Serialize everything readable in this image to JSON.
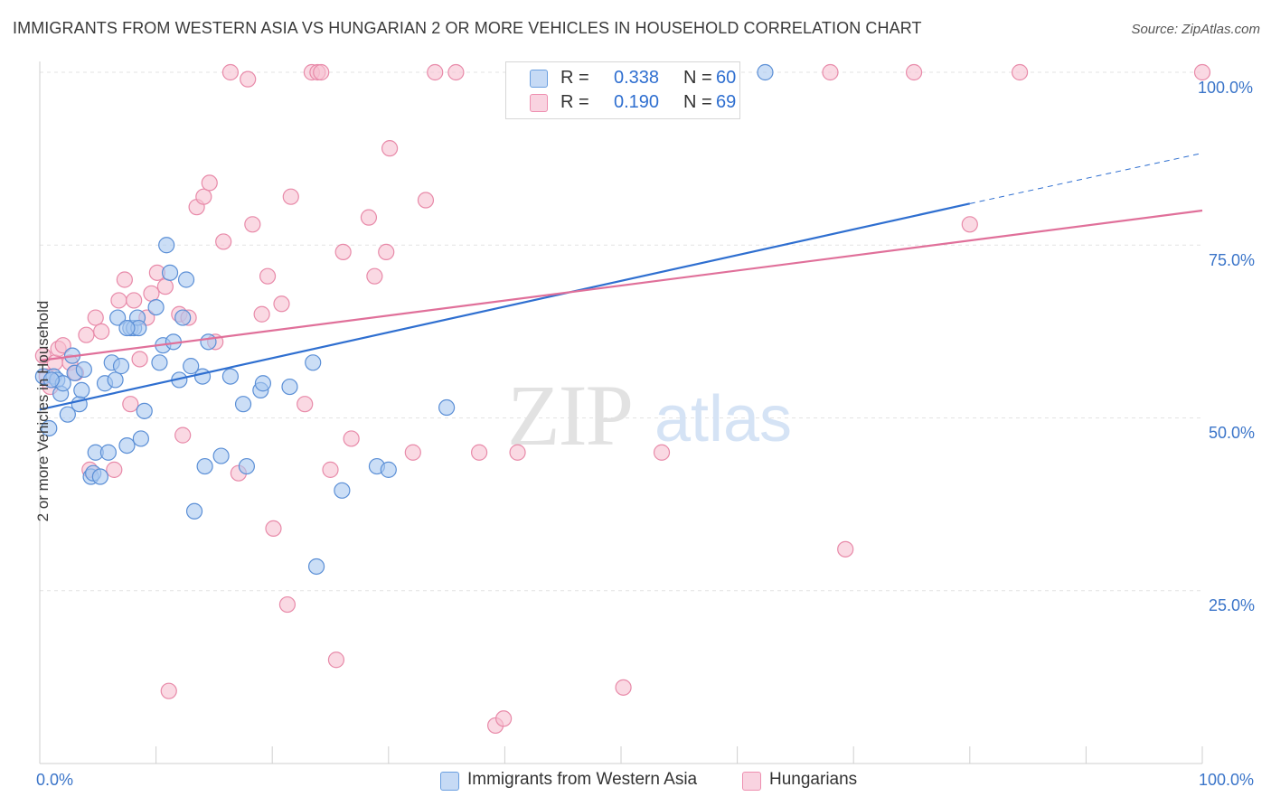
{
  "header": {
    "title": "IMMIGRANTS FROM WESTERN ASIA VS HUNGARIAN 2 OR MORE VEHICLES IN HOUSEHOLD CORRELATION CHART",
    "source": "Source: ZipAtlas.com"
  },
  "watermark": {
    "zip": "ZIP",
    "atlas": "atlas"
  },
  "legend_box": {
    "rows": [
      {
        "r_label": "R =",
        "r_value": "0.338",
        "n_label": "N =",
        "n_value": "60",
        "color": "#6a9fe0"
      },
      {
        "r_label": "R =",
        "r_value": "0.190",
        "n_label": "N =",
        "n_value": "69",
        "color": "#ee8fb0"
      }
    ]
  },
  "bottom_legend": [
    {
      "label": "Immigrants from Western Asia",
      "color": "#6a9fe0"
    },
    {
      "label": "Hungarians",
      "color": "#ee8fb0"
    }
  ],
  "colors": {
    "blue_fill": "#a9c8f0",
    "blue_stroke": "#5b8fd6",
    "blue_line": "#2f6fd0",
    "pink_fill": "#f6bfd0",
    "pink_stroke": "#e88aa9",
    "pink_line": "#e0709a",
    "grid": "#e3e3e3",
    "tick_text": "#3b75c9"
  },
  "chart_data": {
    "type": "scatter",
    "title": "IMMIGRANTS FROM WESTERN ASIA VS HUNGARIAN 2 OR MORE VEHICLES IN HOUSEHOLD CORRELATION CHART",
    "xlabel": "",
    "ylabel": "2 or more Vehicles in Household",
    "x_tick_labels": [
      "0.0%",
      "100.0%"
    ],
    "y_tick_labels": [
      "100.0%",
      "75.0%",
      "50.0%",
      "25.0%"
    ],
    "xlim": [
      0,
      100
    ],
    "ylim": [
      0,
      100
    ],
    "grid": true,
    "legend_position": "top-center",
    "series": [
      {
        "name": "Immigrants from Western Asia",
        "points": [
          [
            0.3,
            56
          ],
          [
            0.8,
            48.5
          ],
          [
            1.2,
            56
          ],
          [
            1.5,
            55.5
          ],
          [
            1.8,
            53.5
          ],
          [
            2.0,
            55
          ],
          [
            2.4,
            50.5
          ],
          [
            2.8,
            59
          ],
          [
            3.0,
            56.5
          ],
          [
            3.4,
            52
          ],
          [
            3.6,
            54
          ],
          [
            3.8,
            57
          ],
          [
            4.4,
            41.5
          ],
          [
            4.6,
            42
          ],
          [
            4.8,
            45
          ],
          [
            5.2,
            41.5
          ],
          [
            5.6,
            55
          ],
          [
            5.9,
            45
          ],
          [
            6.2,
            58
          ],
          [
            6.5,
            55.5
          ],
          [
            6.7,
            64.5
          ],
          [
            7.0,
            57.5
          ],
          [
            7.5,
            46
          ],
          [
            7.8,
            63
          ],
          [
            8.1,
            63
          ],
          [
            8.4,
            64.5
          ],
          [
            8.7,
            47
          ],
          [
            9.0,
            51
          ],
          [
            10.0,
            66
          ],
          [
            10.3,
            58
          ],
          [
            10.6,
            60.5
          ],
          [
            10.9,
            75
          ],
          [
            11.2,
            71
          ],
          [
            11.5,
            61
          ],
          [
            12.0,
            55.5
          ],
          [
            12.3,
            64.5
          ],
          [
            12.6,
            70
          ],
          [
            13.0,
            57.5
          ],
          [
            13.3,
            36.5
          ],
          [
            14.0,
            56
          ],
          [
            14.2,
            43
          ],
          [
            14.5,
            61
          ],
          [
            15.6,
            44.5
          ],
          [
            16.4,
            56
          ],
          [
            17.5,
            52
          ],
          [
            17.8,
            43
          ],
          [
            19.0,
            54
          ],
          [
            19.2,
            55
          ],
          [
            21.5,
            54.5
          ],
          [
            23.5,
            58
          ],
          [
            23.8,
            28.5
          ],
          [
            26.0,
            39.5
          ],
          [
            29.0,
            43
          ],
          [
            30.0,
            42.5
          ],
          [
            35.0,
            51.5
          ],
          [
            62.4,
            100
          ],
          [
            42.0,
            100
          ],
          [
            8.5,
            63
          ],
          [
            1.0,
            55.5
          ],
          [
            7.5,
            63
          ]
        ]
      },
      {
        "name": "Hungarians",
        "points": [
          [
            0.3,
            59
          ],
          [
            0.6,
            56
          ],
          [
            0.9,
            54.5
          ],
          [
            1.3,
            58
          ],
          [
            1.6,
            60
          ],
          [
            2.0,
            60.5
          ],
          [
            2.6,
            58
          ],
          [
            3.1,
            56.5
          ],
          [
            4.0,
            62
          ],
          [
            4.3,
            42.5
          ],
          [
            4.8,
            64.5
          ],
          [
            5.3,
            62.5
          ],
          [
            6.4,
            42.5
          ],
          [
            6.8,
            67
          ],
          [
            7.3,
            70
          ],
          [
            7.8,
            52
          ],
          [
            8.1,
            67
          ],
          [
            8.6,
            58.5
          ],
          [
            9.2,
            64.5
          ],
          [
            9.6,
            68
          ],
          [
            10.1,
            71
          ],
          [
            10.8,
            69
          ],
          [
            11.1,
            10.5
          ],
          [
            12.0,
            65
          ],
          [
            12.3,
            47.5
          ],
          [
            12.8,
            64.5
          ],
          [
            13.5,
            80.5
          ],
          [
            14.1,
            82
          ],
          [
            14.6,
            84
          ],
          [
            15.1,
            61
          ],
          [
            15.8,
            75.5
          ],
          [
            16.4,
            100
          ],
          [
            17.1,
            42
          ],
          [
            17.9,
            99
          ],
          [
            18.3,
            78
          ],
          [
            19.1,
            65
          ],
          [
            19.6,
            70.5
          ],
          [
            20.1,
            34
          ],
          [
            20.8,
            66.5
          ],
          [
            21.3,
            23
          ],
          [
            21.6,
            82
          ],
          [
            22.8,
            52
          ],
          [
            23.4,
            100
          ],
          [
            23.9,
            100
          ],
          [
            24.2,
            100
          ],
          [
            25.0,
            42.5
          ],
          [
            25.5,
            15
          ],
          [
            26.1,
            74
          ],
          [
            26.8,
            47
          ],
          [
            28.3,
            79
          ],
          [
            28.8,
            70.5
          ],
          [
            29.8,
            74
          ],
          [
            30.1,
            89
          ],
          [
            32.1,
            45
          ],
          [
            33.2,
            81.5
          ],
          [
            34.0,
            100
          ],
          [
            35.8,
            100
          ],
          [
            37.8,
            45
          ],
          [
            39.2,
            5.5
          ],
          [
            39.9,
            6.5
          ],
          [
            41.1,
            45
          ],
          [
            50.2,
            11
          ],
          [
            53.5,
            45
          ],
          [
            56.0,
            95
          ],
          [
            68.0,
            100
          ],
          [
            69.3,
            31
          ],
          [
            75.2,
            100
          ],
          [
            80.0,
            78
          ],
          [
            84.3,
            100
          ],
          [
            100.0,
            100
          ]
        ]
      }
    ],
    "trend_lines": [
      {
        "series": "Immigrants from Western Asia",
        "x": [
          0,
          80
        ],
        "y": [
          51.2,
          81
        ],
        "dashed_extension": [
          [
            80,
            81
          ],
          [
            100,
            88.3
          ]
        ]
      },
      {
        "series": "Hungarians",
        "x": [
          0,
          100
        ],
        "y": [
          58.3,
          80
        ]
      }
    ]
  }
}
